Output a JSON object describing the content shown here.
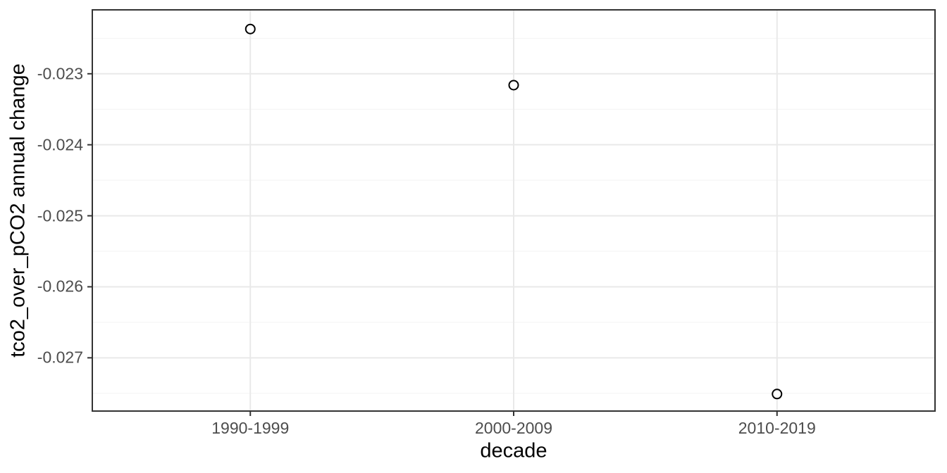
{
  "chart_data": {
    "type": "scatter",
    "title": "",
    "xlabel": "decade",
    "ylabel": "tco2_over_pCO2 annual change",
    "categories": [
      "1990-1999",
      "2000-2009",
      "2010-2019"
    ],
    "values": [
      -0.02237,
      -0.02316,
      -0.02751
    ],
    "y_ticks": [
      -0.023,
      -0.024,
      -0.025,
      -0.026,
      -0.027
    ],
    "y_minor_ticks": [
      -0.0225,
      -0.0235,
      -0.0245,
      -0.0255,
      -0.0265,
      -0.0275
    ],
    "ylim": [
      -0.02775,
      -0.0221
    ],
    "y_tick_decimals": 3,
    "grid": "horizontal major+minor, vertical major at categories",
    "legend": "none",
    "point_style": "open-circle",
    "theme": "ggplot2 theme_bw"
  },
  "colors": {
    "background": "#FFFFFF",
    "panel_background": "#FFFFFF",
    "panel_border": "#333333",
    "grid_major": "#E9E9E9",
    "grid_minor": "#F3F3F3",
    "tick_mark": "#333333",
    "tick_label": "#4D4D4D",
    "axis_title": "#000000",
    "point_stroke": "#000000",
    "point_fill": "#FFFFFF"
  }
}
